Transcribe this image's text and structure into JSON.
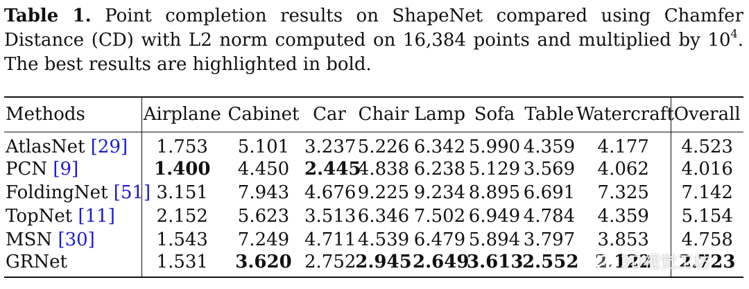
{
  "caption": {
    "label": "Table 1.",
    "text_before_sup": "Point completion results on ShapeNet compared using Chamfer Distance (CD) with L2 norm computed on 16,384 points and multiplied by 10",
    "sup": "4",
    "text_after_sup": ". The best results are highlighted in bold."
  },
  "table": {
    "headers": [
      "Methods",
      "Airplane",
      "Cabinet",
      "Car",
      "Chair",
      "Lamp",
      "Sofa",
      "Table",
      "Watercraft",
      "Overall"
    ],
    "rows": [
      {
        "method": "AtlasNet ",
        "ref": "[29]",
        "values": [
          "1.753",
          "5.101",
          "3.237",
          "5.226",
          "6.342",
          "5.990",
          "4.359",
          "4.177",
          "4.523"
        ],
        "bold": []
      },
      {
        "method": "PCN ",
        "ref": "[9]",
        "values": [
          "1.400",
          "4.450",
          "2.445",
          "4.838",
          "6.238",
          "5.129",
          "3.569",
          "4.062",
          "4.016"
        ],
        "bold": [
          0,
          2
        ]
      },
      {
        "method": "FoldingNet ",
        "ref": "[51]",
        "values": [
          "3.151",
          "7.943",
          "4.676",
          "9.225",
          "9.234",
          "8.895",
          "6.691",
          "7.325",
          "7.142"
        ],
        "bold": []
      },
      {
        "method": "TopNet ",
        "ref": "[11]",
        "values": [
          "2.152",
          "5.623",
          "3.513",
          "6.346",
          "7.502",
          "6.949",
          "4.784",
          "4.359",
          "5.154"
        ],
        "bold": []
      },
      {
        "method": "MSN ",
        "ref": "[30]",
        "values": [
          "1.543",
          "7.249",
          "4.711",
          "4.539",
          "6.479",
          "5.894",
          "3.797",
          "3.853",
          "4.758"
        ],
        "bold": []
      },
      {
        "method": "GRNet",
        "ref": "",
        "values": [
          "1.531",
          "3.620",
          "2.752",
          "2.945",
          "2.649",
          "3.613",
          "2.552",
          "2.122",
          "2.723"
        ],
        "bold": [
          1,
          3,
          4,
          5,
          6,
          7,
          8
        ]
      }
    ]
  },
  "watermark": {
    "text": "3D视觉工坊",
    "icon": "wechat-icon"
  }
}
